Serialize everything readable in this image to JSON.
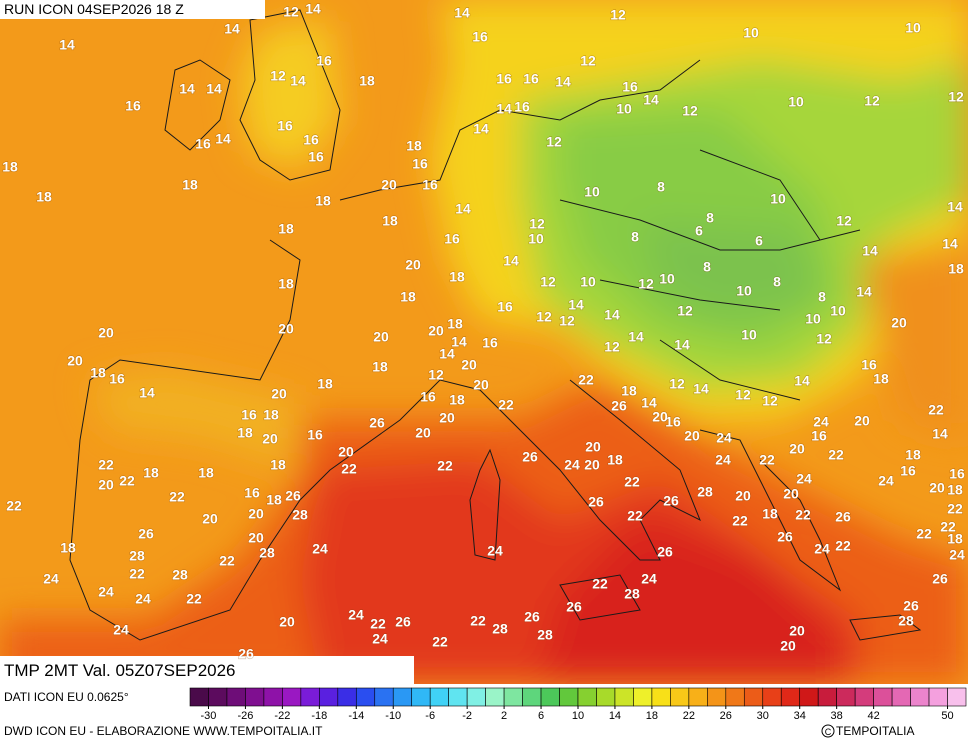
{
  "header": {
    "run": "RUN ICON 04SEP2026 18 Z"
  },
  "footer": {
    "title": "TMP 2MT Val. 05Z07SEP2026",
    "source": "DATI ICON EU 0.0625°",
    "credit": "DWD ICON EU - ELABORAZIONE WWW.TEMPOITALIA.IT",
    "copyright": "TEMPOITALIA"
  },
  "colorbar": {
    "lim": [
      -32,
      52
    ],
    "ticks": [
      -30,
      -26,
      -22,
      -18,
      -14,
      -10,
      -6,
      -2,
      2,
      6,
      10,
      14,
      18,
      22,
      26,
      30,
      34,
      38,
      42,
      50
    ],
    "colors": [
      "#4a0a4a",
      "#5c0b5e",
      "#6e0d78",
      "#7f0f90",
      "#8e12a8",
      "#9a18c2",
      "#7a1cd8",
      "#5a20e0",
      "#3a2ee6",
      "#2a4ef0",
      "#2a72f2",
      "#2a98f4",
      "#30b8f6",
      "#40d2f6",
      "#60e4f0",
      "#80f0e4",
      "#9af4c8",
      "#7ee6a0",
      "#5ed67c",
      "#4cc85a",
      "#62c83c",
      "#86d030",
      "#a8da2a",
      "#cce428",
      "#eef02a",
      "#f8e018",
      "#f8c818",
      "#f8b018",
      "#f49418",
      "#f07818",
      "#ec5c18",
      "#e84018",
      "#e02818",
      "#d01818",
      "#c81c3c",
      "#cc2a5c",
      "#d43c7c",
      "#dc509a",
      "#e468b4",
      "#ec84cc",
      "#f4a0de",
      "#f8c0ec"
    ]
  },
  "labels": {
    "values": [
      12,
      14,
      14,
      12,
      14,
      14,
      16,
      10,
      10,
      16,
      12,
      18,
      12,
      14,
      14,
      14,
      16,
      16,
      14,
      16,
      16,
      14,
      16,
      10,
      14,
      12,
      10,
      12,
      12,
      16,
      14,
      16,
      14,
      16,
      12,
      16,
      18,
      18,
      16,
      18,
      20,
      16,
      10,
      8,
      18,
      18,
      14,
      10,
      14,
      8,
      12,
      18,
      12,
      18,
      16,
      10,
      6,
      8,
      6,
      14,
      20,
      14,
      14,
      8,
      18,
      18,
      12,
      10,
      10,
      12,
      8,
      18,
      18,
      10,
      8,
      14,
      16,
      14,
      12,
      12,
      14,
      10,
      20,
      10,
      12,
      20,
      20,
      18,
      20,
      20,
      14,
      10,
      12,
      14,
      16,
      14,
      14,
      12,
      20,
      18,
      20,
      16,
      16,
      18,
      12,
      22,
      18,
      18,
      20,
      14,
      18,
      12,
      14,
      14,
      20,
      16,
      18,
      12,
      12,
      26,
      14,
      22,
      16,
      18,
      22,
      20,
      26,
      24,
      16,
      20,
      20,
      18,
      20,
      16,
      20,
      20,
      24,
      16,
      14,
      20,
      20,
      20,
      18,
      22,
      22,
      18,
      18,
      18,
      22,
      22,
      26,
      24,
      20,
      18,
      24,
      22,
      16,
      16,
      20,
      22,
      22,
      24,
      24,
      18,
      28,
      22,
      22,
      16,
      18,
      26,
      26,
      26,
      20,
      20,
      20,
      20,
      20,
      28,
      22,
      18,
      22,
      26,
      22,
      26,
      20,
      22,
      22,
      18,
      28,
      22,
      28,
      24,
      24,
      26,
      26,
      24,
      22,
      22,
      18,
      22,
      28,
      24,
      24,
      24,
      22,
      24,
      24,
      22,
      28,
      26,
      26,
      26,
      24,
      24,
      20,
      22,
      24,
      26,
      22,
      26,
      28,
      28,
      28,
      20,
      20,
      22,
      26
    ]
  }
}
